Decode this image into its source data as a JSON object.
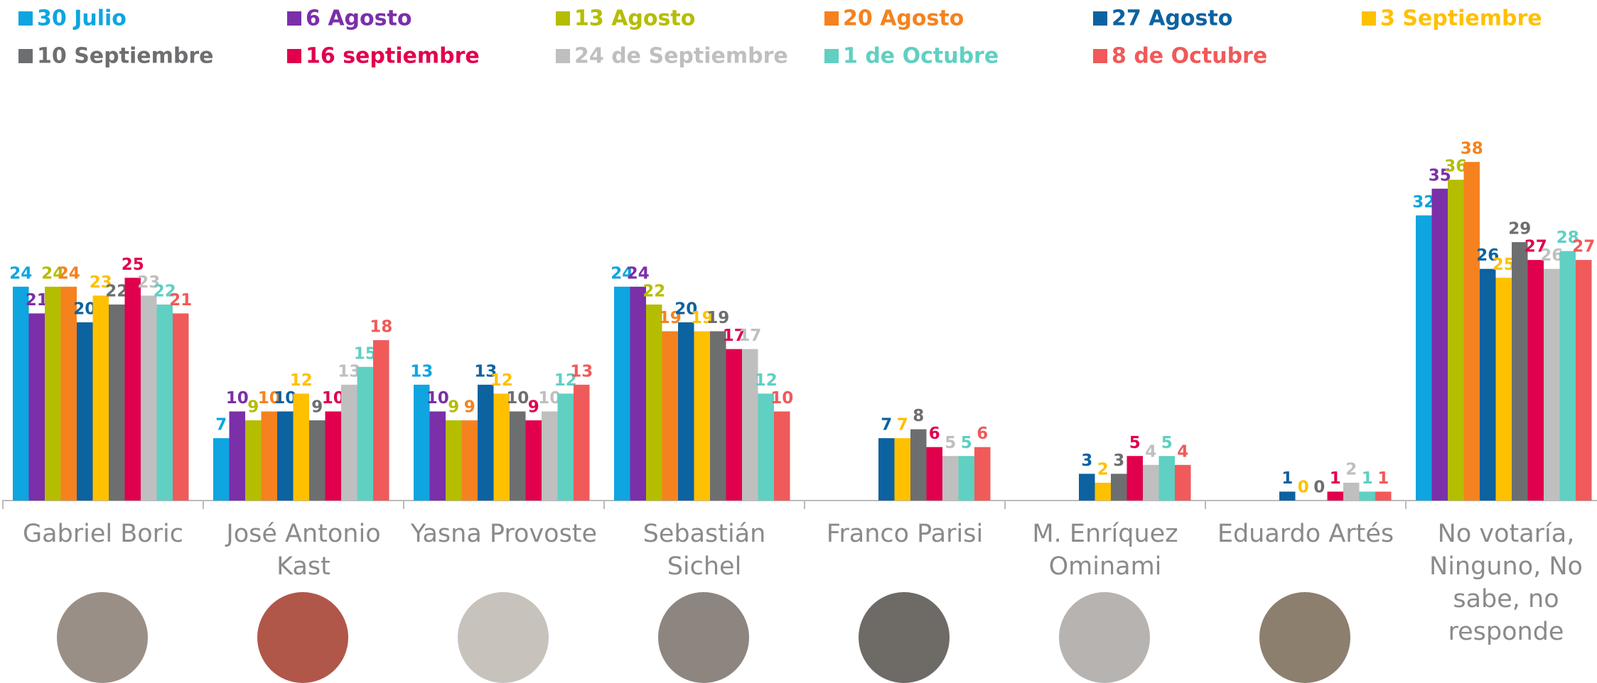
{
  "chart_data": {
    "type": "bar",
    "categories": [
      "Gabriel Boric",
      "José Antonio Kast",
      "Yasna Provoste",
      "Sebastián Sichel",
      "Franco Parisi",
      "M. Enríquez Ominami",
      "Eduardo Artés",
      "No votaría, Ninguno, No sabe, no responde"
    ],
    "series": [
      {
        "name": "30 Julio",
        "color": "#0ea5e0",
        "values": [
          24,
          7,
          13,
          24,
          null,
          null,
          null,
          32
        ]
      },
      {
        "name": "6 Agosto",
        "color": "#7b2fa8",
        "values": [
          21,
          10,
          10,
          24,
          null,
          null,
          null,
          35
        ]
      },
      {
        "name": "13 Agosto",
        "color": "#b5bd00",
        "values": [
          24,
          9,
          9,
          22,
          null,
          null,
          null,
          36
        ]
      },
      {
        "name": "20 Agosto",
        "color": "#f5821f",
        "values": [
          24,
          10,
          9,
          19,
          null,
          null,
          null,
          38
        ]
      },
      {
        "name": "27 Agosto",
        "color": "#0d62a0",
        "values": [
          20,
          10,
          13,
          20,
          7,
          3,
          1,
          26
        ]
      },
      {
        "name": "3 Septiembre",
        "color": "#ffc000",
        "values": [
          23,
          12,
          12,
          19,
          7,
          2,
          0,
          25
        ]
      },
      {
        "name": "10 Septiembre",
        "color": "#6d6e70",
        "values": [
          22,
          9,
          10,
          19,
          8,
          3,
          0,
          29
        ]
      },
      {
        "name": "16 septiembre",
        "color": "#e0004d",
        "values": [
          25,
          10,
          9,
          17,
          6,
          5,
          1,
          27
        ]
      },
      {
        "name": "24 de Septiembre",
        "color": "#bfbfbf",
        "values": [
          23,
          13,
          10,
          17,
          5,
          4,
          2,
          26
        ]
      },
      {
        "name": "1 de Octubre",
        "color": "#5fd0c2",
        "values": [
          22,
          15,
          12,
          12,
          5,
          5,
          1,
          28
        ]
      },
      {
        "name": "8 de Octubre",
        "color": "#f05a5a",
        "values": [
          21,
          18,
          13,
          10,
          6,
          4,
          1,
          27
        ]
      }
    ],
    "legend": "top"
  }
}
